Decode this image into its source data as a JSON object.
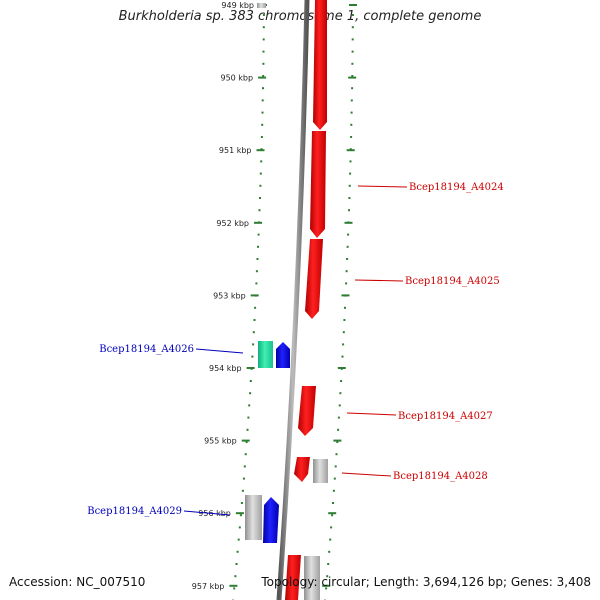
{
  "title": "Burkholderia sp. 383 chromosome 1, complete genome",
  "footer": {
    "accession": "Accession: NC_007510",
    "topology": "Topology: circular; Length: 3,694,126 bp; Genes: 3,408"
  },
  "colors": {
    "forward_gene": "#ff0000",
    "reverse_gene": "#0000ff",
    "reverse_alt_gene": "#22e0a0",
    "pseudo_gene": "#b8b8b8",
    "backbone": "#777777",
    "tick_marks": "#2e7d32",
    "forward_label": "#cc0000",
    "reverse_label": "#0000bb"
  },
  "kbp_ticks": [
    {
      "label": "949 kbp"
    },
    {
      "label": "950 kbp"
    },
    {
      "label": "951 kbp"
    },
    {
      "label": "952 kbp"
    },
    {
      "label": "953 kbp"
    },
    {
      "label": "954 kbp"
    },
    {
      "label": "955 kbp"
    },
    {
      "label": "956 kbp"
    },
    {
      "label": "957 kbp"
    }
  ],
  "gene_labels": [
    {
      "name": "Bcep18194_A4024",
      "strand": "forward"
    },
    {
      "name": "Bcep18194_A4025",
      "strand": "forward"
    },
    {
      "name": "Bcep18194_A4026",
      "strand": "reverse"
    },
    {
      "name": "Bcep18194_A4027",
      "strand": "forward"
    },
    {
      "name": "Bcep18194_A4028",
      "strand": "forward"
    },
    {
      "name": "Bcep18194_A4029",
      "strand": "reverse"
    }
  ]
}
